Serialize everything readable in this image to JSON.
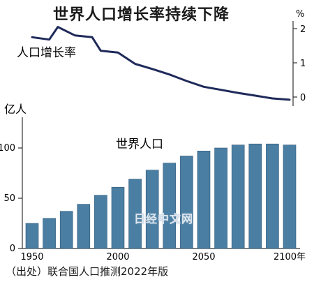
{
  "chart_data": [
    {
      "type": "line",
      "title": "世界人口增长率持续下降",
      "series_label": "人口增长率",
      "y_unit": "%",
      "y_ticks": [
        0,
        1,
        2
      ],
      "ylim": [
        -0.1,
        2.2
      ],
      "x": [
        1950,
        1960,
        1965,
        1975,
        1985,
        1990,
        2000,
        2010,
        2020,
        2030,
        2040,
        2050,
        2060,
        2070,
        2080,
        2090,
        2100
      ],
      "values": [
        1.75,
        1.68,
        2.05,
        1.8,
        1.75,
        1.35,
        1.3,
        0.97,
        0.82,
        0.66,
        0.47,
        0.3,
        0.21,
        0.12,
        0.04,
        -0.04,
        -0.08
      ],
      "color": "#1f2a5a",
      "grid": false
    },
    {
      "type": "bar",
      "y_unit": "亿人",
      "series_label": "世界人口",
      "x_ticks": [
        1950,
        2000,
        2050,
        "2100年"
      ],
      "y_ticks": [
        0,
        50,
        100
      ],
      "ylim": [
        0,
        108
      ],
      "categories": [
        1950,
        1960,
        1970,
        1980,
        1990,
        2000,
        2010,
        2020,
        2030,
        2040,
        2050,
        2060,
        2070,
        2080,
        2090,
        2100
      ],
      "values": [
        25,
        30,
        37,
        44,
        53,
        61,
        69,
        78,
        85,
        92,
        97,
        100,
        103,
        104,
        104,
        103
      ],
      "color": "#4a7ea3",
      "grid": false
    }
  ],
  "source_note": "（出处）联合国人口推测2022年版",
  "watermark": "日经中文网"
}
